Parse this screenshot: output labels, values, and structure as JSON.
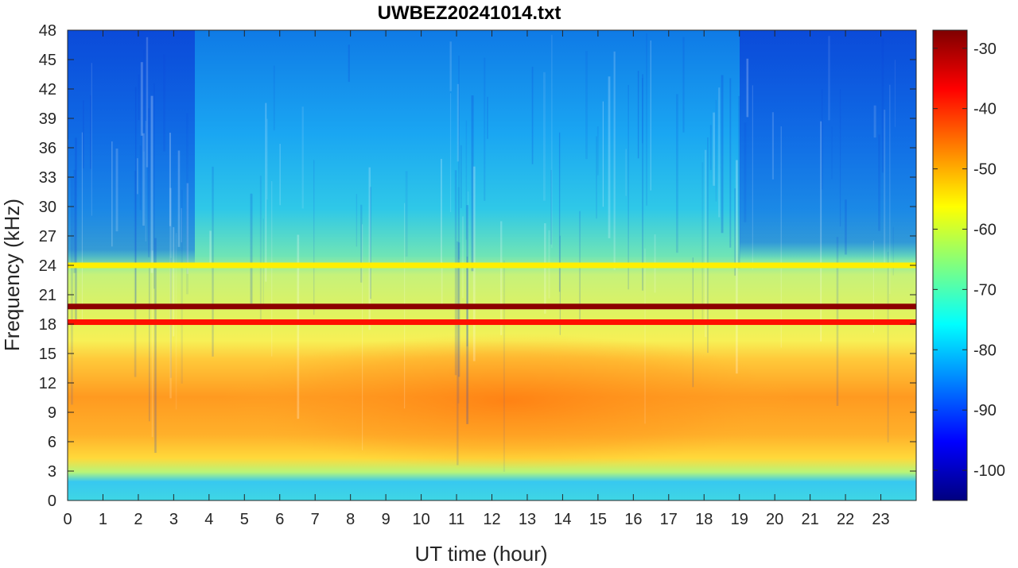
{
  "chart_data": {
    "type": "heatmap",
    "title": "UWBEZ20241014.txt",
    "xlabel": "UT time (hour)",
    "ylabel": "Frequency (kHz)",
    "xlim": [
      0,
      24
    ],
    "ylim": [
      0,
      48
    ],
    "x_ticks": [
      "0",
      "1",
      "2",
      "3",
      "4",
      "5",
      "6",
      "7",
      "8",
      "9",
      "10",
      "11",
      "12",
      "13",
      "14",
      "15",
      "16",
      "17",
      "18",
      "19",
      "20",
      "21",
      "22",
      "23"
    ],
    "y_ticks": [
      "0",
      "3",
      "6",
      "9",
      "12",
      "15",
      "18",
      "21",
      "24",
      "27",
      "30",
      "33",
      "36",
      "39",
      "42",
      "45",
      "48"
    ],
    "colorbar": {
      "colormap": "jet",
      "range": [
        -105,
        -27
      ],
      "ticks": [
        "-30",
        "-40",
        "-50",
        "-60",
        "-70",
        "-80",
        "-90",
        "-100"
      ]
    },
    "features": [
      {
        "type": "narrowband_line",
        "frequency_khz": 19.8,
        "level_db": -28
      },
      {
        "type": "narrowband_line",
        "frequency_khz": 18.2,
        "level_db": -38
      },
      {
        "type": "narrowband_line",
        "frequency_khz": 24.0,
        "level_db": -55
      },
      {
        "type": "broadband_noise",
        "frequency_khz_range": [
          4,
          16
        ],
        "level_db": -50,
        "peak_hours": [
          8,
          19
        ]
      },
      {
        "type": "background",
        "frequency_khz_range": [
          25,
          48
        ],
        "level_db": -80,
        "quiet_hours": [
          [
            0,
            5
          ],
          [
            19,
            24
          ]
        ],
        "quiet_level_db": -92
      }
    ]
  }
}
